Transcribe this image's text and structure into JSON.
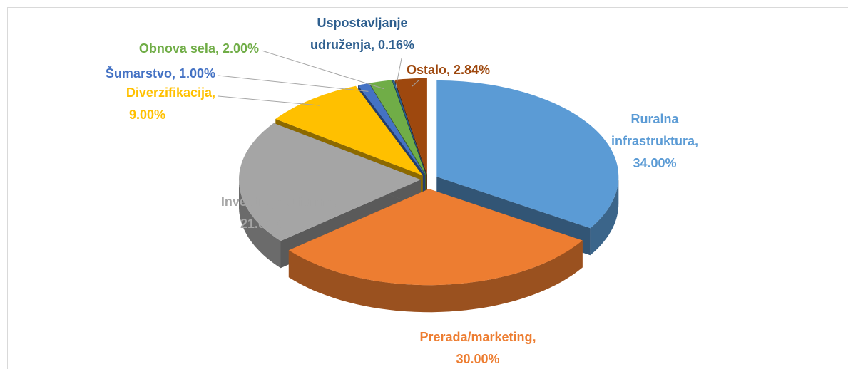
{
  "chart_data": {
    "type": "pie",
    "value_labels": [
      "Ruralna infrastruktura, 34.00%",
      "Prerada/marketing, 30.00%",
      "Investicije u farme, 21.00%",
      "Diverzifikacija, 9.00%",
      "Šumarstvo, 1.00%",
      "Obnova sela, 2.00%",
      "Uspostavljanje udruženja, 0.16%",
      "Ostalo, 2.84%"
    ],
    "values": [
      34.0,
      30.0,
      21.0,
      9.0,
      1.0,
      2.0,
      0.16,
      2.84
    ],
    "colors": [
      "#5b9bd5",
      "#ed7d31",
      "#a5a5a5",
      "#ffc000",
      "#4472c4",
      "#70ad47",
      "#255e91",
      "#9e480e"
    ],
    "label_colors": [
      "#5b9bd5",
      "#ed7d31",
      "#a5a5a5",
      "#ffc000",
      "#4472c4",
      "#70ad47",
      "#2e5f8f",
      "#9e480e"
    ]
  }
}
